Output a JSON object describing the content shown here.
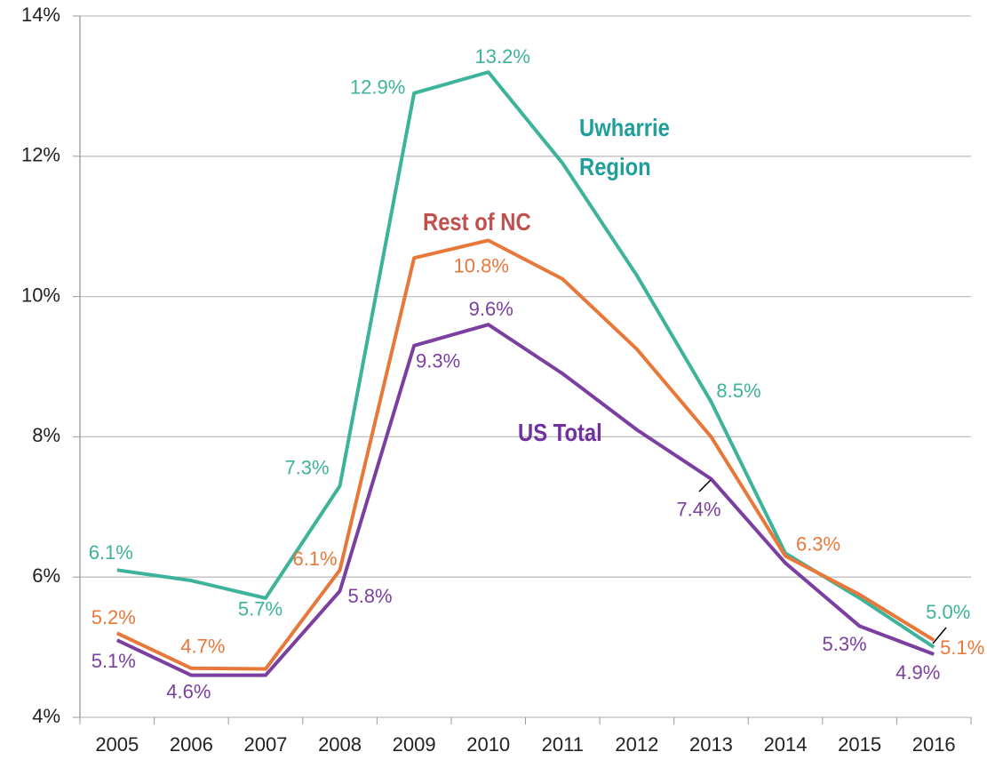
{
  "chart_data": {
    "type": "line",
    "categories": [
      "2005",
      "2006",
      "2007",
      "2008",
      "2009",
      "2010",
      "2011",
      "2012",
      "2013",
      "2014",
      "2015",
      "2016"
    ],
    "series": [
      {
        "name": "Uwharrie Region",
        "color": "#3db39b",
        "label_color": "#1f9e9c",
        "values": [
          6.1,
          5.95,
          5.7,
          7.3,
          12.9,
          13.2,
          11.9,
          10.3,
          8.5,
          6.34,
          5.7,
          5.0
        ],
        "value_labels": [
          "6.1%",
          null,
          "5.7%",
          "7.3%",
          "12.9%",
          "13.2%",
          null,
          null,
          "8.5%",
          null,
          null,
          "5.0%"
        ]
      },
      {
        "name": "Rest of NC",
        "color": "#e8773a",
        "label_color": "#c0504d",
        "values": [
          5.2,
          4.7,
          4.69,
          6.1,
          10.55,
          10.8,
          10.25,
          9.25,
          8.0,
          6.3,
          5.75,
          5.1
        ],
        "value_labels": [
          "5.2%",
          "4.7%",
          null,
          "6.1%",
          null,
          "10.8%",
          null,
          null,
          null,
          "6.3%",
          null,
          "5.1%"
        ]
      },
      {
        "name": "US Total",
        "color": "#7b3fa0",
        "label_color": "#7030a0",
        "values": [
          5.1,
          4.6,
          4.6,
          5.8,
          9.3,
          9.6,
          8.9,
          8.1,
          7.4,
          6.2,
          5.3,
          4.9
        ],
        "value_labels": [
          "5.1%",
          "4.6%",
          null,
          "5.8%",
          "9.3%",
          "9.6%",
          null,
          null,
          "7.4%",
          null,
          "5.3%",
          "4.9%"
        ]
      }
    ],
    "ylim": [
      4,
      14
    ],
    "yticks": [
      {
        "value": 4,
        "label": "4%"
      },
      {
        "value": 6,
        "label": "6%"
      },
      {
        "value": 8,
        "label": "8%"
      },
      {
        "value": 10,
        "label": "10%"
      },
      {
        "value": 12,
        "label": "12%"
      },
      {
        "value": 14,
        "label": "14%"
      }
    ],
    "grid": true
  }
}
